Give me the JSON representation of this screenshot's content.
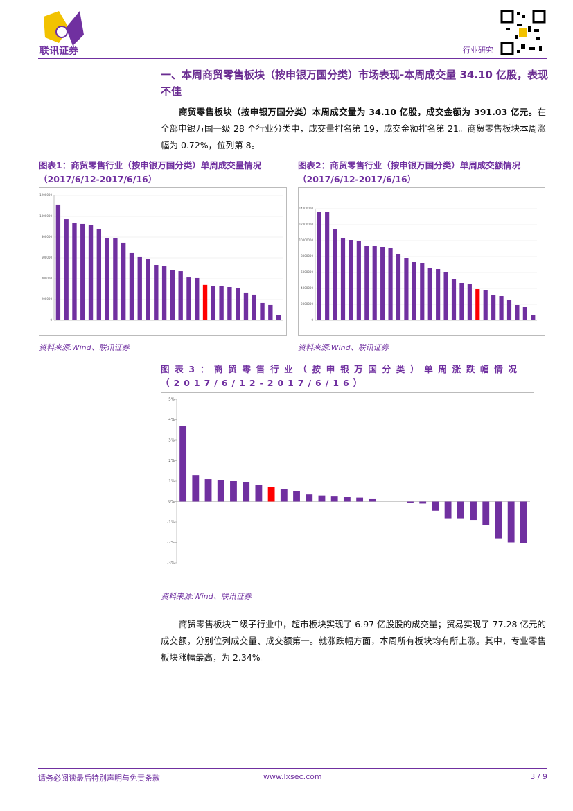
{
  "header": {
    "logo_text": "联讯证券",
    "category": "行业研究"
  },
  "section": {
    "heading": "一、本周商贸零售板块（按申银万国分类）市场表现-本周成交量 34.10 亿股，表现不佳",
    "paragraph_bold": "商贸零售板块（按申银万国分类）本周成交量为 34.10 亿股，成交金额为 391.03 亿元。",
    "paragraph": "在全部申银万国一级 28 个行业分类中，成交量排名第 19，成交金额排名第 21。商贸零售板块本周涨幅为 0.72%，位列第 8。"
  },
  "figures": [
    {
      "label": "图表1：",
      "title": "商贸零售行业（按申银万国分类）单周成交量情况（2017/6/12-2017/6/16）",
      "source": "资料来源:Wind、联讯证券",
      "chart_data": {
        "type": "bar",
        "categories": [
          null,
          null,
          null,
          null,
          null,
          null,
          null,
          null,
          null,
          null,
          null,
          null,
          null,
          null,
          null,
          null,
          null,
          null,
          null,
          null,
          null,
          null,
          null,
          null,
          null,
          null,
          null,
          null
        ],
        "values": [
          1107000,
          973000,
          940000,
          927000,
          920000,
          880000,
          793000,
          793000,
          747000,
          647000,
          607000,
          593000,
          527000,
          520000,
          480000,
          473000,
          413000,
          407000,
          341000,
          327000,
          327000,
          320000,
          307000,
          267000,
          247000,
          167000,
          147000,
          47000
        ],
        "colors": [
          "#7030a0",
          "#7030a0",
          "#7030a0",
          "#7030a0",
          "#7030a0",
          "#7030a0",
          "#7030a0",
          "#7030a0",
          "#7030a0",
          "#7030a0",
          "#7030a0",
          "#7030a0",
          "#7030a0",
          "#7030a0",
          "#7030a0",
          "#7030a0",
          "#7030a0",
          "#7030a0",
          "#ff0000",
          "#7030a0",
          "#7030a0",
          "#7030a0",
          "#7030a0",
          "#7030a0",
          "#7030a0",
          "#7030a0",
          "#7030a0",
          "#7030a0"
        ],
        "ylim": [
          0,
          1200000
        ],
        "yticks": [
          0,
          200000,
          400000,
          600000,
          800000,
          1000000,
          1200000
        ],
        "grid": true
      }
    },
    {
      "label": "图表2：",
      "title": "商贸零售行业（按申银万国分类）单周成交额情况（2017/6/12-2017/6/16）",
      "source": "资料来源:Wind、联讯证券",
      "chart_data": {
        "type": "bar",
        "categories": [
          null,
          null,
          null,
          null,
          null,
          null,
          null,
          null,
          null,
          null,
          null,
          null,
          null,
          null,
          null,
          null,
          null,
          null,
          null,
          null,
          null,
          null,
          null,
          null,
          null,
          null,
          null,
          null
        ],
        "values": [
          13565000,
          13565000,
          11391000,
          10348000,
          10087000,
          10000000,
          9304000,
          9304000,
          9217000,
          9043000,
          8348000,
          7826000,
          7304000,
          7130000,
          6522000,
          6435000,
          6087000,
          5130000,
          4696000,
          4522000,
          3910000,
          3739000,
          3130000,
          3043000,
          2522000,
          1913000,
          1652000,
          609000
        ],
        "colors": [
          "#7030a0",
          "#7030a0",
          "#7030a0",
          "#7030a0",
          "#7030a0",
          "#7030a0",
          "#7030a0",
          "#7030a0",
          "#7030a0",
          "#7030a0",
          "#7030a0",
          "#7030a0",
          "#7030a0",
          "#7030a0",
          "#7030a0",
          "#7030a0",
          "#7030a0",
          "#7030a0",
          "#7030a0",
          "#7030a0",
          "#ff0000",
          "#7030a0",
          "#7030a0",
          "#7030a0",
          "#7030a0",
          "#7030a0",
          "#7030a0",
          "#7030a0"
        ],
        "ylim": [
          0,
          14000000
        ],
        "yticks": [
          0,
          2000000,
          4000000,
          6000000,
          8000000,
          10000000,
          12000000,
          14000000
        ],
        "grid": true
      }
    },
    {
      "label": "图表3：",
      "title": "商贸零售行业（按申银万国分类）单周涨跌幅情况（2017/6/12-2017/6/16）",
      "source": "资料来源:Wind、联讯证券",
      "chart_data": {
        "type": "bar",
        "categories": [
          null,
          null,
          null,
          null,
          null,
          null,
          null,
          null,
          null,
          null,
          null,
          null,
          null,
          null,
          null,
          null,
          null,
          null,
          null,
          null,
          null,
          null,
          null,
          null,
          null,
          null,
          null,
          null
        ],
        "values": [
          3.7,
          1.3,
          1.1,
          1.05,
          1.0,
          0.95,
          0.8,
          0.72,
          0.6,
          0.5,
          0.35,
          0.3,
          0.25,
          0.22,
          0.2,
          0.12,
          0.0,
          0.0,
          -0.05,
          -0.1,
          -0.45,
          -0.85,
          -0.85,
          -0.9,
          -1.15,
          -1.8,
          -2.0,
          -2.05
        ],
        "colors": [
          "#7030a0",
          "#7030a0",
          "#7030a0",
          "#7030a0",
          "#7030a0",
          "#7030a0",
          "#7030a0",
          "#ff0000",
          "#7030a0",
          "#7030a0",
          "#7030a0",
          "#7030a0",
          "#7030a0",
          "#7030a0",
          "#7030a0",
          "#7030a0",
          "#7030a0",
          "#7030a0",
          "#7030a0",
          "#7030a0",
          "#7030a0",
          "#7030a0",
          "#7030a0",
          "#7030a0",
          "#7030a0",
          "#7030a0",
          "#7030a0",
          "#7030a0"
        ],
        "ylim": [
          -3,
          5
        ],
        "yticks": [
          {
            "value": -3,
            "label": "-3%"
          },
          {
            "value": -2,
            "label": "-2%"
          },
          {
            "value": -1,
            "label": "-1%"
          },
          {
            "value": 0,
            "label": "0%"
          },
          {
            "value": 1,
            "label": "1%"
          },
          {
            "value": 2,
            "label": "2%"
          },
          {
            "value": 3,
            "label": "3%"
          },
          {
            "value": 4,
            "label": "4%"
          },
          {
            "value": 5,
            "label": "5%"
          }
        ],
        "grid": false
      }
    }
  ],
  "closing_paragraph": "商贸零售板块二级子行业中，超市板块实现了 6.97 亿股股的成交量；贸易实现了 77.28 亿元的成交额，分别位列成交量、成交额第一。就涨跌幅方面，本周所有板块均有所上涨。其中，专业零售板块涨幅最高，为 2.34%。",
  "footer": {
    "disclaimer": "请务必阅读最后特别声明与免责条款",
    "website": "www.lxsec.com",
    "page": "3 / 9"
  }
}
